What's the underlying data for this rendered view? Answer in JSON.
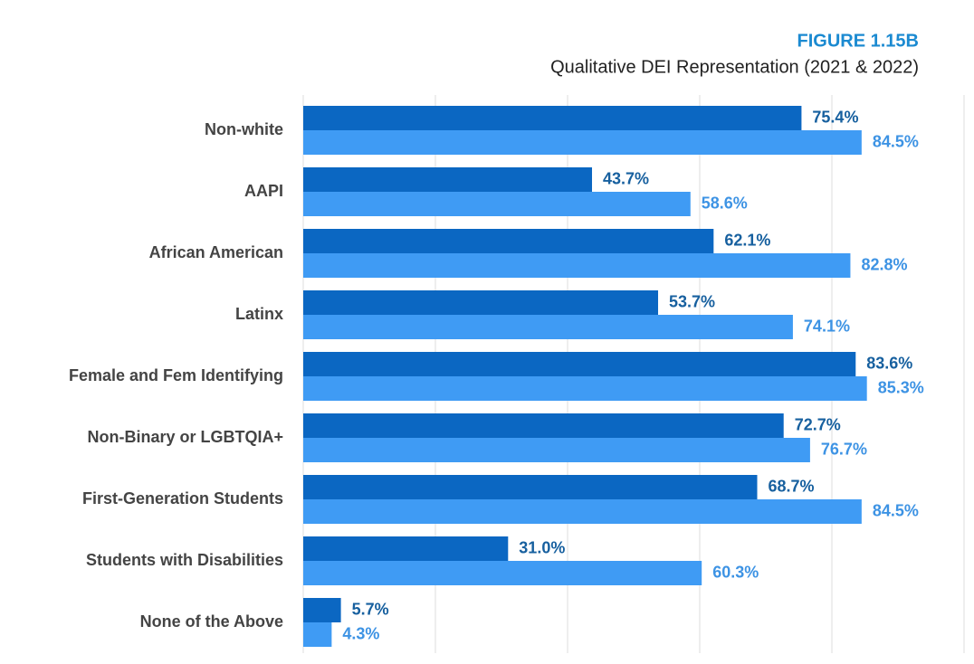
{
  "chart_data": {
    "type": "hbar",
    "title": "FIGURE 1.15B",
    "subtitle": "Qualitative DEI Representation (2021 & 2022)",
    "categories": [
      "Non-white",
      "AAPI",
      "African American",
      "Latinx",
      "Female and Fem Identifying",
      "Non-Binary or LGBTQIA+",
      "First-Generation Students",
      "Students with Disabilities",
      "None of the Above"
    ],
    "series": [
      {
        "color": "#0b67c2",
        "label_color": "#17609f",
        "values": [
          75.4,
          43.7,
          62.1,
          53.7,
          83.6,
          72.7,
          68.7,
          31.0,
          5.7
        ],
        "value_labels": [
          "75.4%",
          "43.7%",
          "62.1%",
          "53.7%",
          "83.6%",
          "72.7%",
          "68.7%",
          "31.0%",
          "5.7%"
        ]
      },
      {
        "color": "#3f9bf4",
        "label_color": "#3d93e4",
        "values": [
          84.5,
          58.6,
          82.8,
          74.1,
          85.3,
          76.7,
          84.5,
          60.3,
          4.3
        ],
        "value_labels": [
          "84.5%",
          "58.6%",
          "82.8%",
          "74.1%",
          "85.3%",
          "76.7%",
          "84.5%",
          "60.3%",
          "4.3%"
        ]
      }
    ],
    "xlim": [
      0,
      100
    ],
    "xticks": [
      0,
      20,
      40,
      60,
      80,
      100
    ],
    "grid": true
  }
}
